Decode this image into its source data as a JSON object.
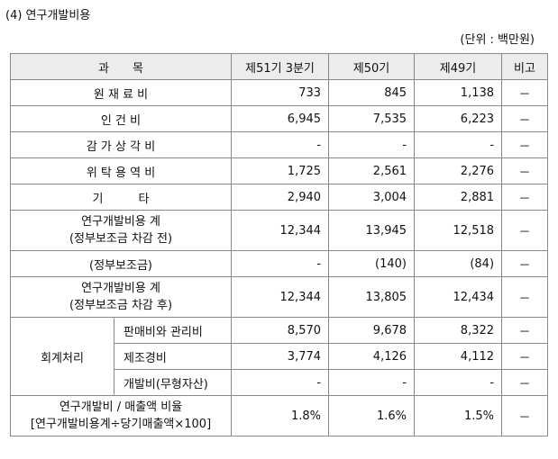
{
  "heading": "(4) 연구개발비용",
  "unit": "(단위 : 백만원)",
  "header": [
    "과　　목",
    "제51기 3분기",
    "제50기",
    "제49기",
    "비고"
  ],
  "rows": [
    {
      "label": "원 재 료 비",
      "v": [
        "733",
        "845",
        "1,138"
      ],
      "note": "－"
    },
    {
      "label": "인 건 비",
      "v": [
        "6,945",
        "7,535",
        "6,223"
      ],
      "note": "－"
    },
    {
      "label": "감 가 상 각 비",
      "v": [
        "-",
        "-",
        "-"
      ],
      "note": "－"
    },
    {
      "label": "위 탁 용 역 비",
      "v": [
        "1,725",
        "2,561",
        "2,276"
      ],
      "note": "－"
    },
    {
      "label": "기　　　타",
      "v": [
        "2,940",
        "3,004",
        "2,881"
      ],
      "note": "－"
    },
    {
      "label1": "연구개발비용 계",
      "label2": "(정부보조금 차감 전)",
      "v": [
        "12,344",
        "13,945",
        "12,518"
      ],
      "note": "－"
    },
    {
      "label": "(정부보조금)",
      "v": [
        "-",
        "(140)",
        "(84)"
      ],
      "note": "－"
    },
    {
      "label1": "연구개발비용 계",
      "label2": "(정부보조금 차감 후)",
      "v": [
        "12,344",
        "13,805",
        "12,434"
      ],
      "note": "－"
    }
  ],
  "accounting": {
    "label": "회계처리",
    "items": [
      {
        "label": "판매비와 관리비",
        "v": [
          "8,570",
          "9,678",
          "8,322"
        ],
        "note": "－"
      },
      {
        "label": "제조경비",
        "v": [
          "3,774",
          "4,126",
          "4,112"
        ],
        "note": "－"
      },
      {
        "label": "개발비(무형자산)",
        "v": [
          "-",
          "-",
          "-"
        ],
        "note": "－"
      }
    ]
  },
  "ratio": {
    "label1": "연구개발비 / 매출액 비율",
    "label2": "[연구개발비용계÷당기매출액×100]",
    "v": [
      "1.8%",
      "1.6%",
      "1.5%"
    ],
    "note": "－"
  }
}
